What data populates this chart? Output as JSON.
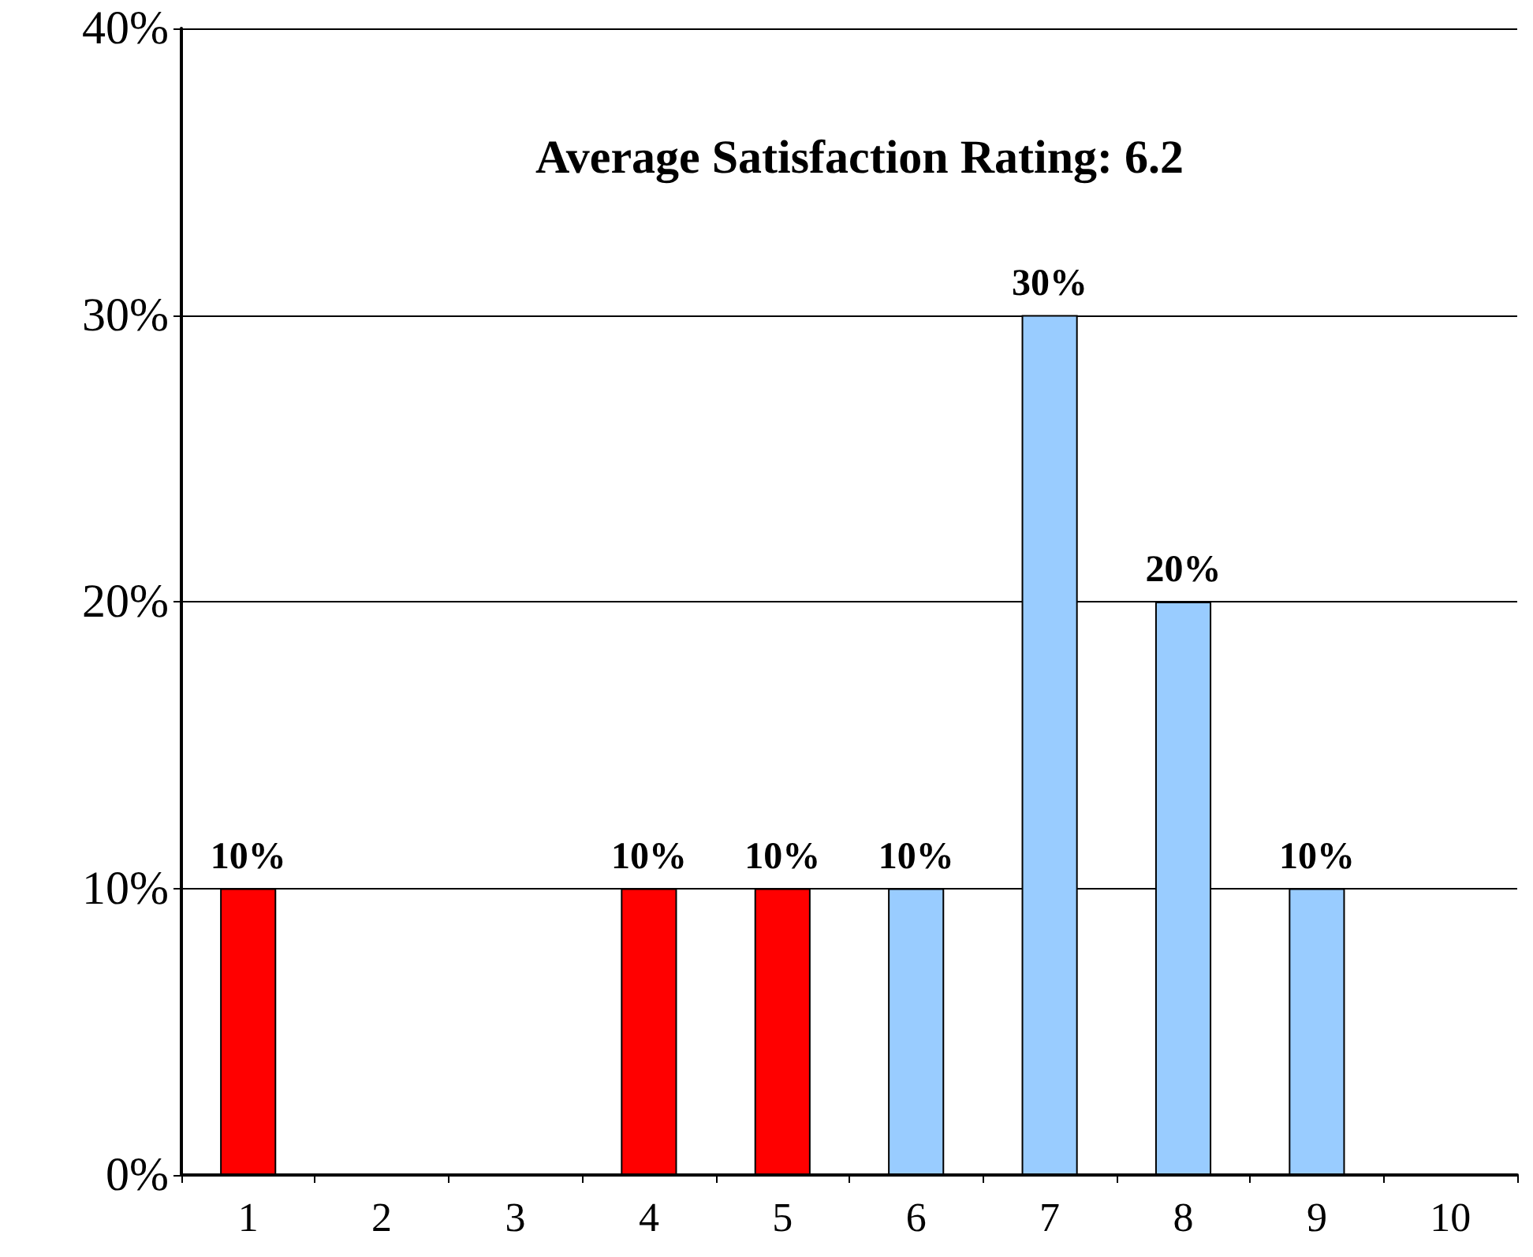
{
  "chart_data": {
    "type": "bar",
    "title": "Average Satisfaction Rating: 6.2",
    "categories": [
      "1",
      "2",
      "3",
      "4",
      "5",
      "6",
      "7",
      "8",
      "9",
      "10"
    ],
    "values": [
      10,
      0,
      0,
      10,
      10,
      10,
      30,
      20,
      10,
      0
    ],
    "colors": [
      "#ff0000",
      "#ff0000",
      "#ff0000",
      "#ff0000",
      "#ff0000",
      "#99ccff",
      "#99ccff",
      "#99ccff",
      "#99ccff",
      "#99ccff"
    ],
    "value_labels": [
      "10%",
      null,
      null,
      "10%",
      "10%",
      "10%",
      "30%",
      "20%",
      "10%",
      null
    ],
    "ylim": [
      0,
      40
    ],
    "yticks": [
      {
        "value": 0,
        "label": "0%"
      },
      {
        "value": 10,
        "label": "10%"
      },
      {
        "value": 20,
        "label": "20%"
      },
      {
        "value": 30,
        "label": "30%"
      },
      {
        "value": 40,
        "label": "40%"
      }
    ],
    "grid": "y"
  }
}
